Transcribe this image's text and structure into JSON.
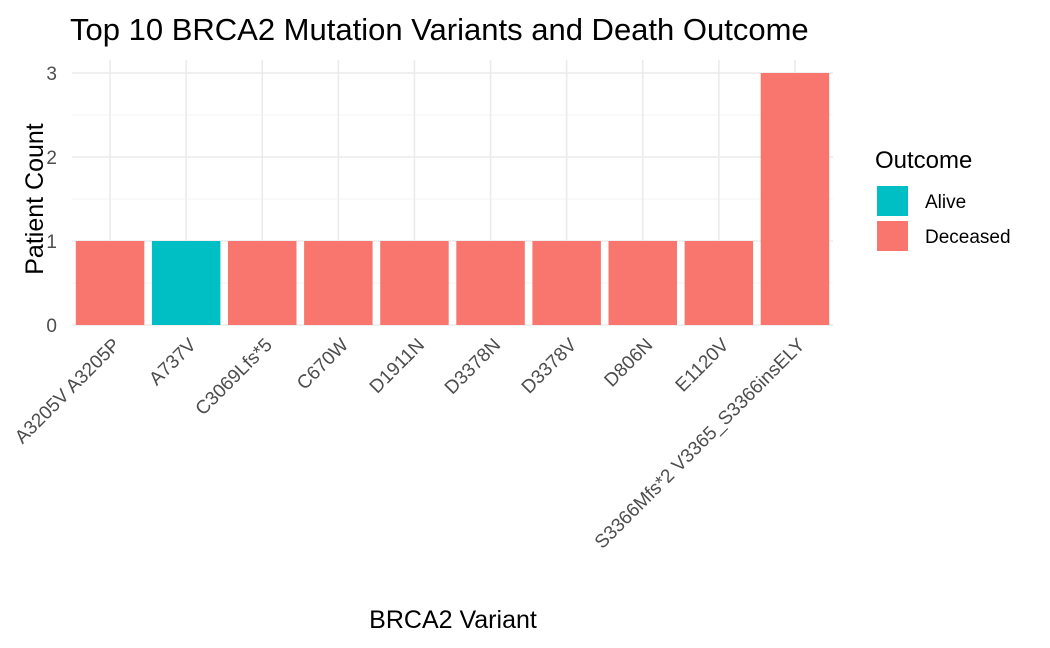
{
  "chart_data": {
    "type": "bar",
    "title": "Top 10 BRCA2 Mutation Variants and Death Outcome",
    "xlabel": "BRCA2 Variant",
    "ylabel": "Patient Count",
    "categories": [
      "A3205V A3205P",
      "A737V",
      "C3069Lfs*5",
      "C670W",
      "D1911N",
      "D3378N",
      "D3378V",
      "D806N",
      "E1120V",
      "S3366Mfs*2 V3365_S3366insELY"
    ],
    "values": [
      1,
      1,
      1,
      1,
      1,
      1,
      1,
      1,
      1,
      3
    ],
    "outcome": [
      "Deceased",
      "Alive",
      "Deceased",
      "Deceased",
      "Deceased",
      "Deceased",
      "Deceased",
      "Deceased",
      "Deceased",
      "Deceased"
    ],
    "ylim": [
      0,
      3
    ],
    "yticks": [
      "0",
      "1",
      "2",
      "3"
    ],
    "grid": true,
    "legend": {
      "title": "Outcome",
      "placement": "right",
      "entries": [
        {
          "label": "Alive",
          "color": "#00bfc4"
        },
        {
          "label": "Deceased",
          "color": "#f8766d"
        }
      ]
    }
  }
}
